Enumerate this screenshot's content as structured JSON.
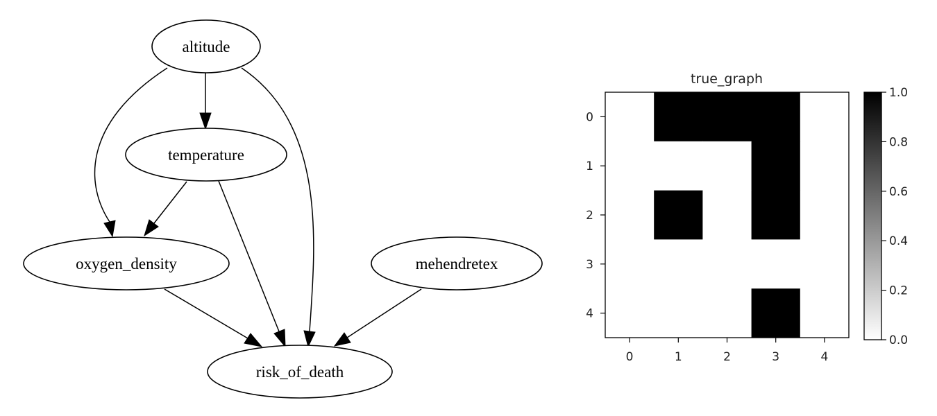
{
  "diagram": {
    "nodes": [
      {
        "id": "altitude",
        "label": "altitude"
      },
      {
        "id": "temperature",
        "label": "temperature"
      },
      {
        "id": "oxygen_density",
        "label": "oxygen_density"
      },
      {
        "id": "mehendretex",
        "label": "mehendretex"
      },
      {
        "id": "risk_of_death",
        "label": "risk_of_death"
      }
    ],
    "edges": [
      {
        "from": "altitude",
        "to": "temperature"
      },
      {
        "from": "altitude",
        "to": "oxygen_density"
      },
      {
        "from": "altitude",
        "to": "risk_of_death"
      },
      {
        "from": "temperature",
        "to": "oxygen_density"
      },
      {
        "from": "temperature",
        "to": "risk_of_death"
      },
      {
        "from": "oxygen_density",
        "to": "risk_of_death"
      },
      {
        "from": "mehendretex",
        "to": "risk_of_death"
      }
    ]
  },
  "chart_data": {
    "type": "heatmap",
    "title": "true_graph",
    "x_ticks": [
      "0",
      "1",
      "2",
      "3",
      "4"
    ],
    "y_ticks": [
      "0",
      "1",
      "2",
      "3",
      "4"
    ],
    "matrix": [
      [
        0,
        1,
        1,
        1,
        0
      ],
      [
        0,
        0,
        0,
        1,
        0
      ],
      [
        0,
        1,
        0,
        1,
        0
      ],
      [
        0,
        0,
        0,
        0,
        0
      ],
      [
        0,
        0,
        0,
        1,
        0
      ]
    ],
    "colormap": {
      "min_color": "#ffffff",
      "max_color": "#000000"
    },
    "colorbar": {
      "ticks": [
        "0.0",
        "0.2",
        "0.4",
        "0.6",
        "0.8",
        "1.0"
      ],
      "range": [
        0,
        1
      ]
    }
  }
}
